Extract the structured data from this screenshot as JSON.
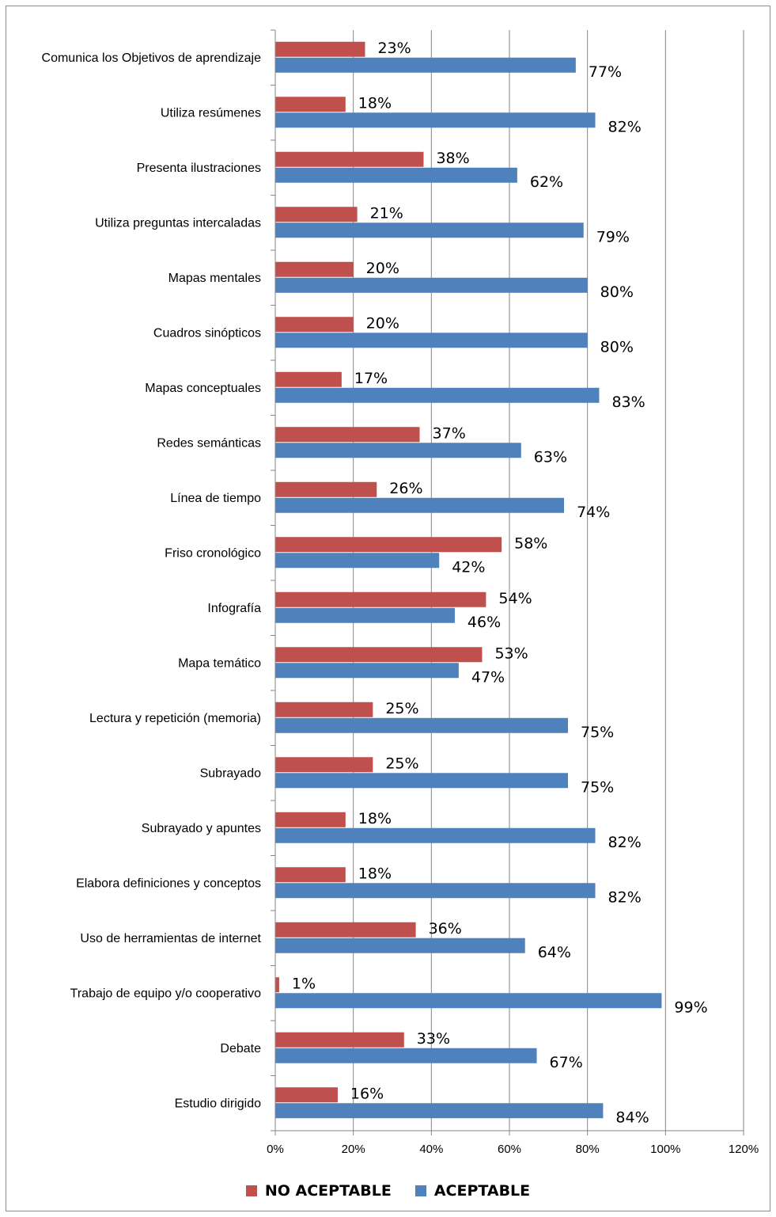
{
  "chart_data": {
    "type": "bar",
    "orientation": "horizontal",
    "categories": [
      "Comunica los Objetivos de aprendizaje",
      "Utiliza resúmenes",
      "Presenta ilustraciones",
      "Utiliza preguntas intercaladas",
      "Mapas mentales",
      "Cuadros sinópticos",
      "Mapas conceptuales",
      "Redes semánticas",
      "Línea de tiempo",
      "Friso cronológico",
      "Infografía",
      "Mapa temático",
      "Lectura y repetición (memoria)",
      "Subrayado",
      "Subrayado y apuntes",
      "Elabora definiciones y conceptos",
      "Uso de herramientas de internet",
      "Trabajo de equipo y/o cooperativo",
      "Debate",
      "Estudio dirigido"
    ],
    "series": [
      {
        "name": "NO ACEPTABLE",
        "color": "#c0504d",
        "values": [
          23,
          18,
          38,
          21,
          20,
          20,
          17,
          37,
          26,
          58,
          54,
          53,
          25,
          25,
          18,
          18,
          36,
          1,
          33,
          16
        ],
        "labels": [
          "23%",
          "18%",
          "38%",
          "21%",
          "20%",
          "20%",
          "17%",
          "37%",
          "26%",
          "58%",
          "54%",
          "53%",
          "25%",
          "25%",
          "18%",
          "18%",
          "36%",
          "1%",
          "33%",
          "16%"
        ]
      },
      {
        "name": "ACEPTABLE",
        "color": "#4f81bd",
        "values": [
          77,
          82,
          62,
          79,
          80,
          80,
          83,
          63,
          74,
          42,
          46,
          47,
          75,
          75,
          82,
          82,
          64,
          99,
          67,
          84
        ],
        "labels": [
          "77%",
          "82%",
          "62%",
          "79%",
          "80%",
          "80%",
          "83%",
          "63%",
          "74%",
          "42%",
          "46%",
          "47%",
          "75%",
          "75%",
          "82%",
          "82%",
          "64%",
          "99%",
          "67%",
          "84%"
        ]
      }
    ],
    "x_ticks": [
      "0%",
      "20%",
      "40%",
      "60%",
      "80%",
      "100%",
      "120%"
    ],
    "xlim": [
      0,
      120
    ],
    "grid": true,
    "legend_position": "bottom",
    "title": "",
    "xlabel": "",
    "ylabel": ""
  }
}
